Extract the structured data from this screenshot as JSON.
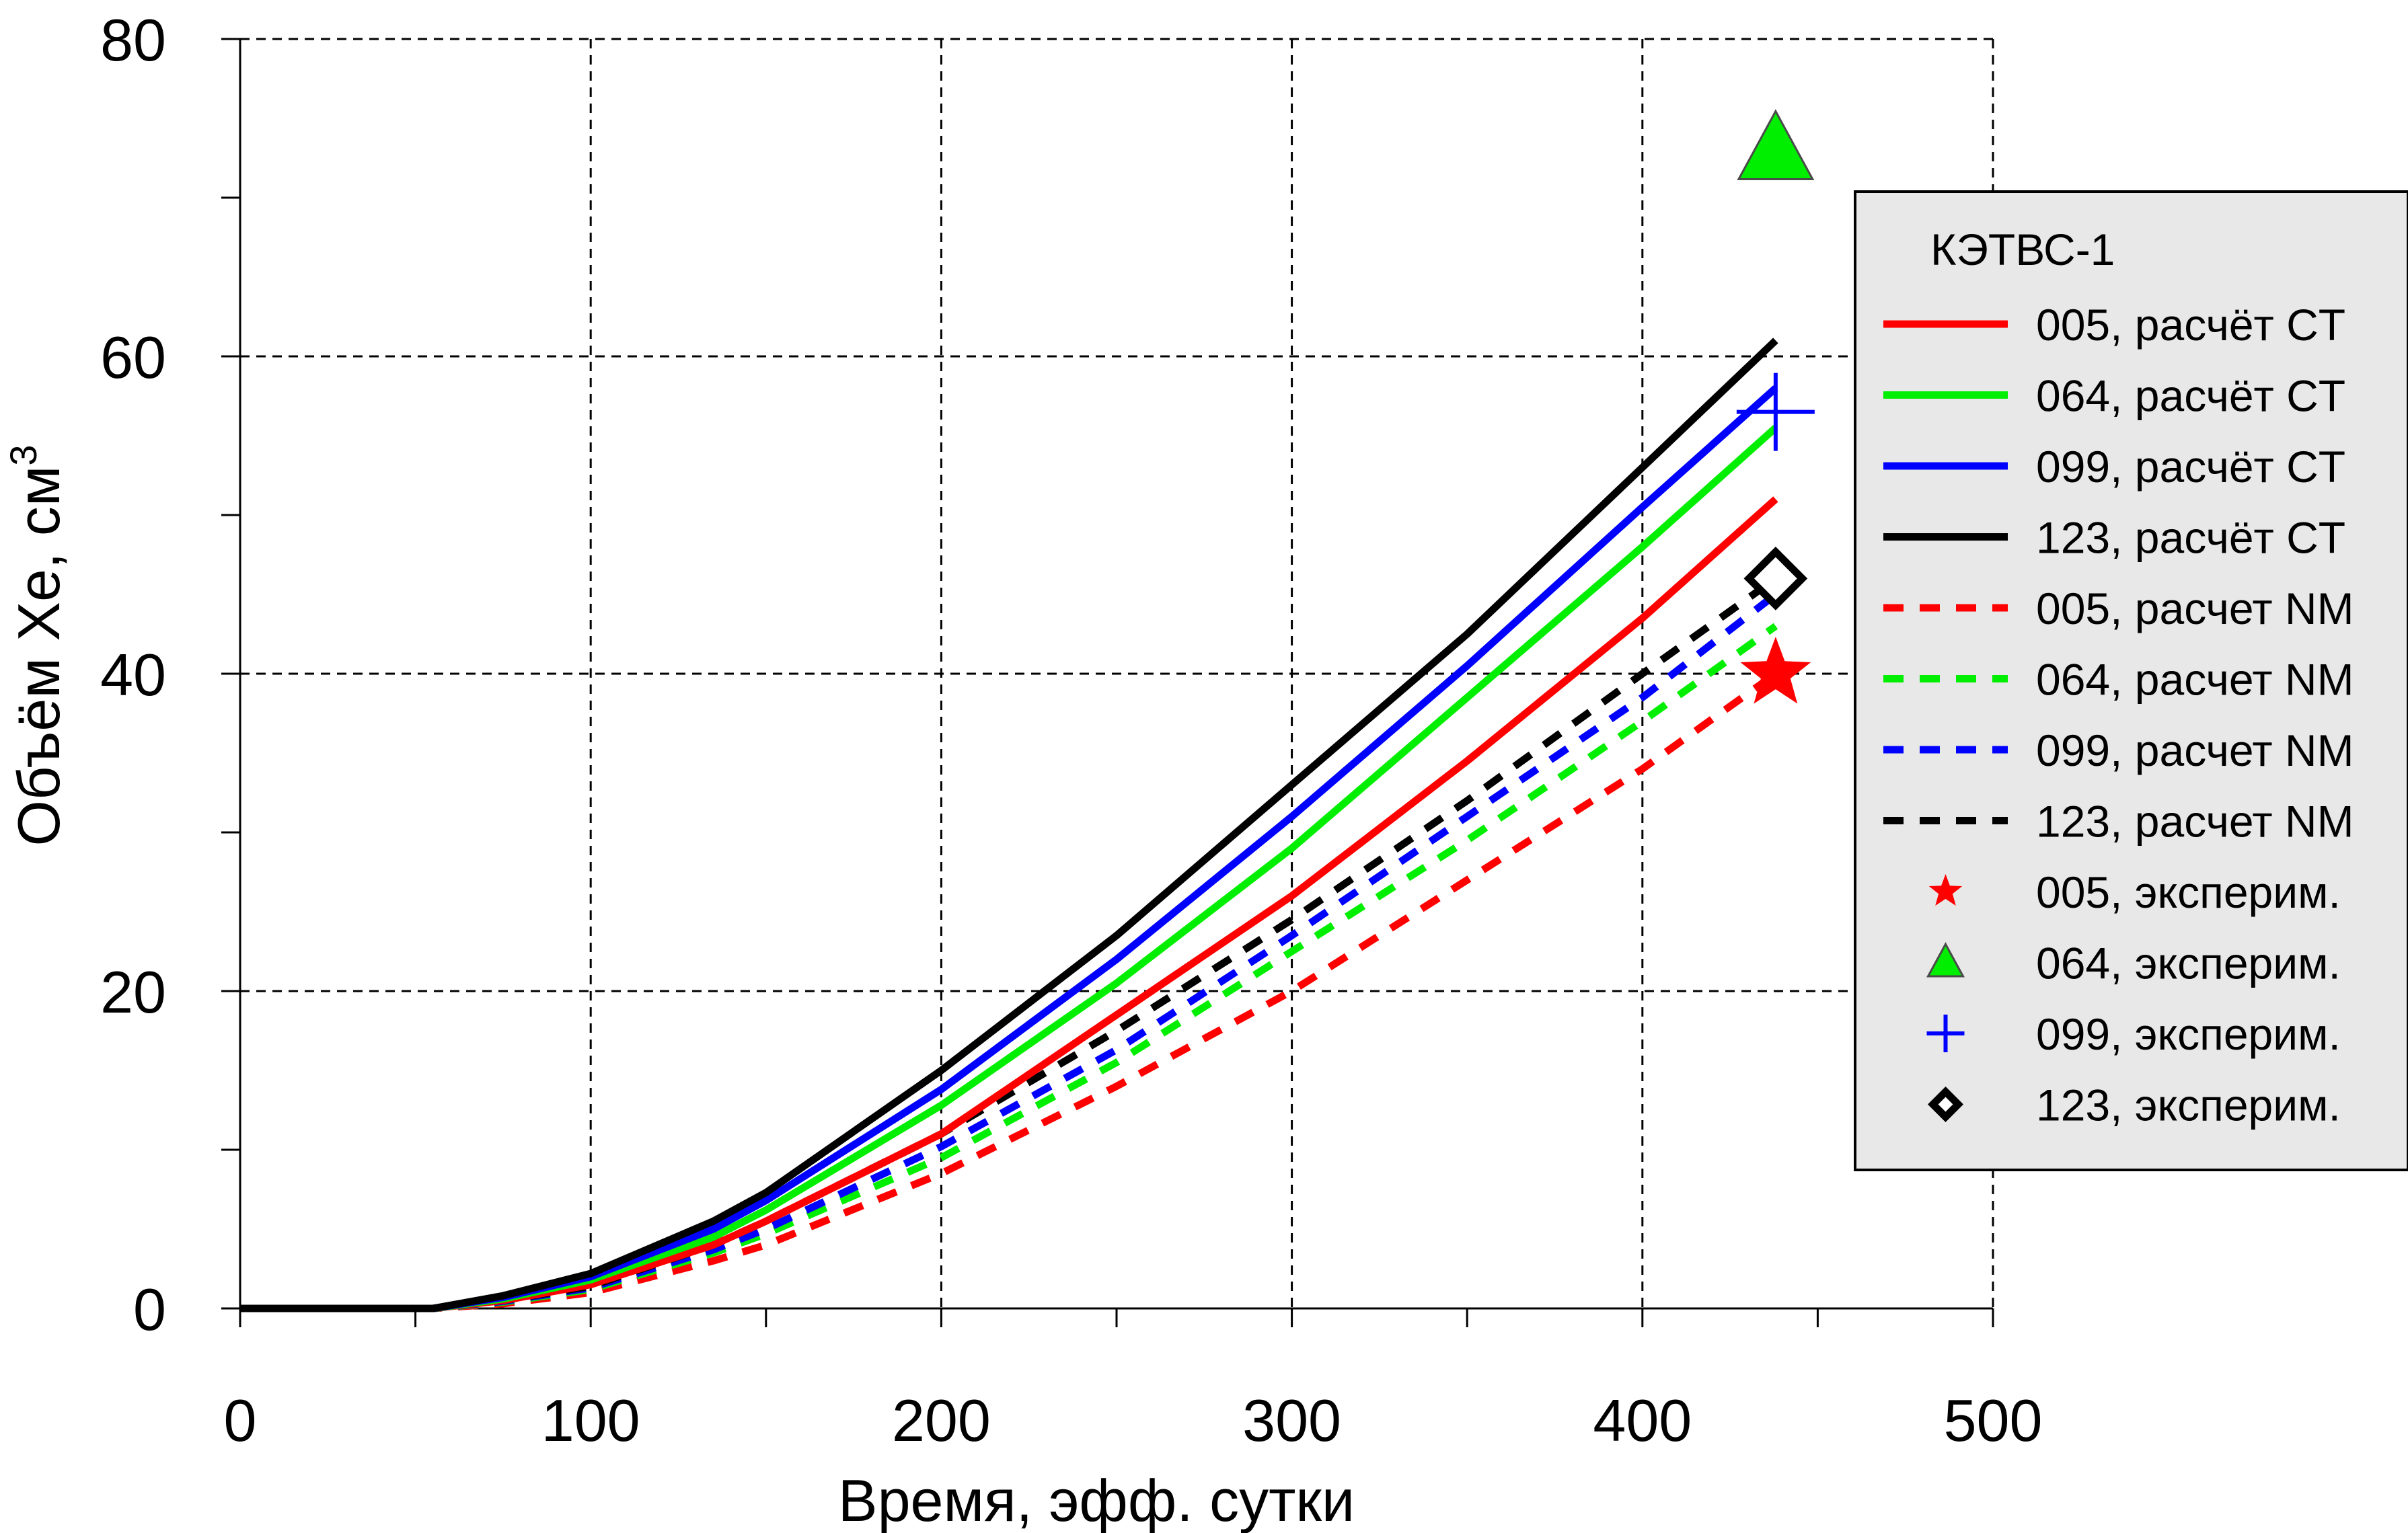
{
  "chart_data": {
    "type": "line",
    "title": "",
    "xlabel": "Время, эфф. сутки",
    "ylabel": "Объём Xe, см",
    "ylabel_sup": "3",
    "xlim": [
      0,
      500
    ],
    "ylim": [
      0,
      80
    ],
    "x_ticks": [
      0,
      100,
      200,
      300,
      400,
      500
    ],
    "y_ticks": [
      0,
      20,
      40,
      60,
      80
    ],
    "grid": true,
    "legend_position": "right",
    "legend_title": "КЭТВС-1",
    "colors": {
      "005": "#ff0000",
      "064": "#00ee00",
      "099": "#0000ff",
      "123": "#000000"
    },
    "series": [
      {
        "name": "005, расчёт CT",
        "style": "solid",
        "color": "#ff0000",
        "x": [
          0,
          55,
          75,
          100,
          135,
          150,
          200,
          250,
          300,
          350,
          400,
          438
        ],
        "y": [
          0,
          0,
          0.5,
          1.5,
          4,
          5.5,
          11,
          18.5,
          26,
          34.5,
          43.5,
          51
        ]
      },
      {
        "name": "064, расчёт CT",
        "style": "solid",
        "color": "#00ee00",
        "x": [
          0,
          55,
          75,
          100,
          135,
          150,
          200,
          250,
          300,
          350,
          400,
          438
        ],
        "y": [
          0,
          0,
          0.6,
          1.8,
          4.5,
          6.2,
          12.8,
          20.5,
          29,
          38.5,
          48,
          55.5
        ]
      },
      {
        "name": "099, расчёт CT",
        "style": "solid",
        "color": "#0000ff",
        "x": [
          0,
          55,
          75,
          100,
          135,
          150,
          200,
          250,
          300,
          350,
          400,
          438
        ],
        "y": [
          0,
          0,
          0.7,
          2,
          5,
          6.8,
          13.8,
          22,
          31,
          40.5,
          50.5,
          58
        ]
      },
      {
        "name": "123, расчёт CT",
        "style": "solid",
        "color": "#000000",
        "x": [
          0,
          55,
          75,
          100,
          135,
          150,
          200,
          250,
          300,
          350,
          400,
          438
        ],
        "y": [
          0,
          0,
          0.8,
          2.2,
          5.5,
          7.3,
          15,
          23.5,
          33,
          42.5,
          53,
          61
        ]
      },
      {
        "name": "005, расчет NM",
        "style": "dashed",
        "color": "#ff0000",
        "x": [
          0,
          55,
          75,
          100,
          135,
          150,
          200,
          250,
          300,
          350,
          400,
          438
        ],
        "y": [
          0,
          0,
          0.3,
          1,
          3,
          4,
          8.5,
          14,
          20,
          27,
          34,
          40
        ]
      },
      {
        "name": "064, расчет NM",
        "style": "dashed",
        "color": "#00ee00",
        "x": [
          0,
          55,
          75,
          100,
          135,
          150,
          200,
          250,
          300,
          350,
          400,
          438
        ],
        "y": [
          0,
          0,
          0.4,
          1.2,
          3.5,
          4.7,
          9.5,
          15.5,
          22.5,
          29.5,
          37,
          43
        ]
      },
      {
        "name": "099, расчет NM",
        "style": "dashed",
        "color": "#0000ff",
        "x": [
          0,
          55,
          75,
          100,
          135,
          150,
          200,
          250,
          300,
          350,
          400,
          438
        ],
        "y": [
          0,
          0,
          0.45,
          1.3,
          3.7,
          5,
          10.2,
          16.3,
          23.5,
          31,
          38.5,
          45
        ]
      },
      {
        "name": "123, расчет NM",
        "style": "dashed",
        "color": "#000000",
        "x": [
          0,
          55,
          75,
          100,
          135,
          150,
          200,
          250,
          300,
          350,
          400,
          438
        ],
        "y": [
          0,
          0,
          0.5,
          1.4,
          4,
          5.5,
          11,
          17.5,
          24.5,
          32,
          40,
          46
        ]
      }
    ],
    "points": [
      {
        "name": "005, эксперим.",
        "marker": "star",
        "color": "#ff0000",
        "x": 438,
        "y": 40
      },
      {
        "name": "064, эксперим.",
        "marker": "triangle",
        "color": "#00ee00",
        "x": 438,
        "y": 73
      },
      {
        "name": "099, эксперим.",
        "marker": "plus",
        "color": "#0000ff",
        "x": 438,
        "y": 56.5
      },
      {
        "name": "123, эксперим.",
        "marker": "diamond",
        "color": "#000000",
        "x": 438,
        "y": 46
      }
    ]
  }
}
